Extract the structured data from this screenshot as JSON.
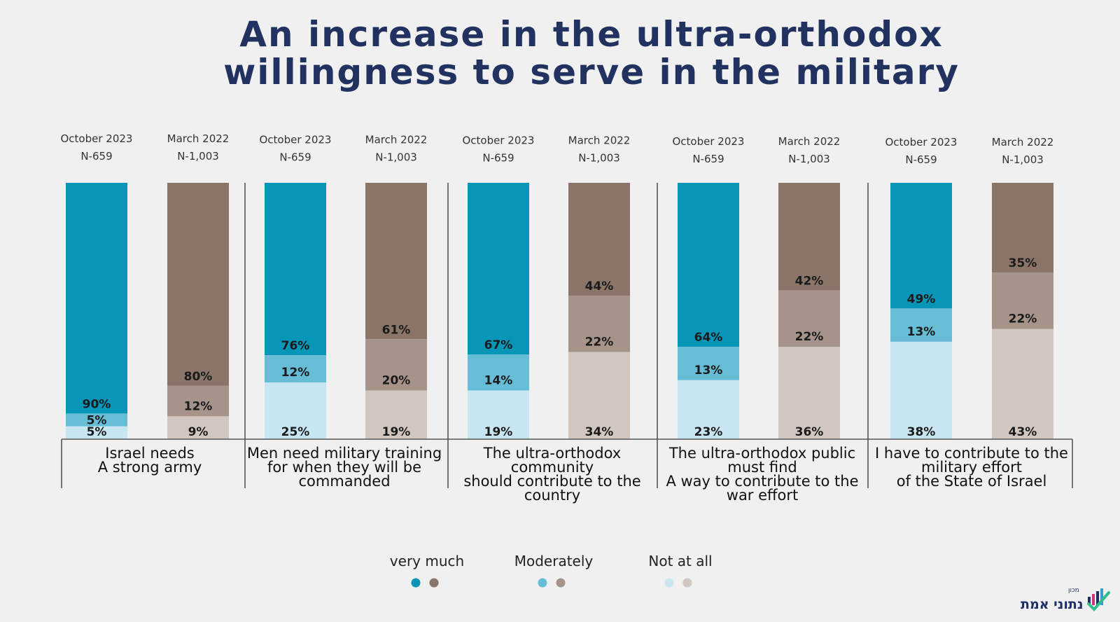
{
  "title_line1": "An increase in the ultra-orthodox",
  "title_line2": "willingness to serve in the military",
  "logo_text": "נתוני אמת",
  "logo_sub": "מכון",
  "colors": {
    "oct_very": "#0796b8",
    "oct_moderate": "#67bcd6",
    "oct_none": "#c8e6f1",
    "mar_very": "#8b7569",
    "mar_moderate": "#a6938a",
    "mar_none": "#d2c7c0",
    "title": "#213260",
    "divider": "#555555"
  },
  "chart_data": {
    "type": "bar",
    "stacked": true,
    "legend_position": "bottom-center",
    "legend": [
      {
        "label": "very much",
        "colors": [
          "#0796b8",
          "#8b7569"
        ]
      },
      {
        "label": "Moderately",
        "colors": [
          "#67bcd6",
          "#a6938a"
        ]
      },
      {
        "label": "Not at all",
        "colors": [
          "#c8e6f1",
          "#d2c7c0"
        ]
      }
    ],
    "groups": [
      {
        "label_lines": [
          "Israel needs",
          "A strong army"
        ],
        "bars": [
          {
            "period": "October 2023",
            "n": "N-659",
            "scheme": "oct",
            "very": 90,
            "moderate": 5,
            "none": 5,
            "labels": [
              "90%",
              "5%",
              "5%"
            ]
          },
          {
            "period": "March 2022",
            "n": "N-1,003",
            "scheme": "mar",
            "very": 80,
            "moderate": 12,
            "none": 9,
            "labels": [
              "80%",
              "12%",
              "9%"
            ]
          }
        ]
      },
      {
        "label_lines": [
          "Men need military training",
          "for when they will be",
          "commanded"
        ],
        "bars": [
          {
            "period": "October 2023",
            "n": "N-659",
            "scheme": "oct",
            "very": 76,
            "moderate": 12,
            "none": 25,
            "labels": [
              "76%",
              "12%",
              "25%"
            ]
          },
          {
            "period": "March 2022",
            "n": "N-1,003",
            "scheme": "mar",
            "very": 61,
            "moderate": 20,
            "none": 19,
            "labels": [
              "61%",
              "20%",
              "19%"
            ]
          }
        ]
      },
      {
        "label_lines": [
          "The ultra-orthodox",
          "community",
          "should contribute to the",
          "country"
        ],
        "bars": [
          {
            "period": "October 2023",
            "n": "N-659",
            "scheme": "oct",
            "very": 67,
            "moderate": 14,
            "none": 19,
            "labels": [
              "67%",
              "14%",
              "19%"
            ]
          },
          {
            "period": "March 2022",
            "n": "N-1,003",
            "scheme": "mar",
            "very": 44,
            "moderate": 22,
            "none": 34,
            "labels": [
              "44%",
              "22%",
              "34%"
            ]
          }
        ]
      },
      {
        "label_lines": [
          "The ultra-orthodox public",
          "must find",
          "A way to contribute to the",
          "war effort"
        ],
        "bars": [
          {
            "period": "October 2023",
            "n": "N-659",
            "scheme": "oct",
            "very": 64,
            "moderate": 13,
            "none": 23,
            "labels": [
              "64%",
              "13%",
              "23%"
            ]
          },
          {
            "period": "March 2022",
            "n": "N-1,003",
            "scheme": "mar",
            "very": 42,
            "moderate": 22,
            "none": 36,
            "labels": [
              "42%",
              "22%",
              "36%"
            ]
          }
        ]
      },
      {
        "label_lines": [
          "I have to contribute to the",
          "military effort",
          "of the State of Israel"
        ],
        "bars": [
          {
            "period": "October 2023",
            "n": "N-659",
            "scheme": "oct",
            "very": 49,
            "moderate": 13,
            "none": 38,
            "labels": [
              "49%",
              "13%",
              "38%"
            ]
          },
          {
            "period": "March 2022",
            "n": "N-1,003",
            "scheme": "mar",
            "very": 35,
            "moderate": 22,
            "none": 43,
            "labels": [
              "35%",
              "22%",
              "43%"
            ]
          }
        ]
      }
    ]
  }
}
